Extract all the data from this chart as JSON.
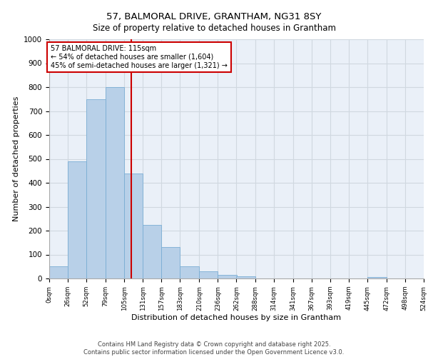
{
  "title_line1": "57, BALMORAL DRIVE, GRANTHAM, NG31 8SY",
  "title_line2": "Size of property relative to detached houses in Grantham",
  "xlabel": "Distribution of detached houses by size in Grantham",
  "ylabel": "Number of detached properties",
  "footer_line1": "Contains HM Land Registry data © Crown copyright and database right 2025.",
  "footer_line2": "Contains public sector information licensed under the Open Government Licence v3.0.",
  "bar_color": "#b8d0e8",
  "bar_edge_color": "#7aadd4",
  "grid_color": "#d0d8e0",
  "background_color": "#eaf0f8",
  "vline_color": "#cc0000",
  "vline_x": 115,
  "annotation_text": "57 BALMORAL DRIVE: 115sqm\n← 54% of detached houses are smaller (1,604)\n45% of semi-detached houses are larger (1,321) →",
  "annotation_box_color": "#cc0000",
  "bin_edges": [
    0,
    26,
    52,
    79,
    105,
    131,
    157,
    183,
    210,
    236,
    262,
    288,
    314,
    341,
    367,
    393,
    419,
    445,
    472,
    498,
    524
  ],
  "bar_heights": [
    50,
    490,
    750,
    800,
    440,
    225,
    130,
    50,
    30,
    15,
    10,
    0,
    0,
    0,
    0,
    0,
    0,
    5,
    0,
    0
  ],
  "ylim": [
    0,
    1000
  ],
  "yticks": [
    0,
    100,
    200,
    300,
    400,
    500,
    600,
    700,
    800,
    900,
    1000
  ]
}
